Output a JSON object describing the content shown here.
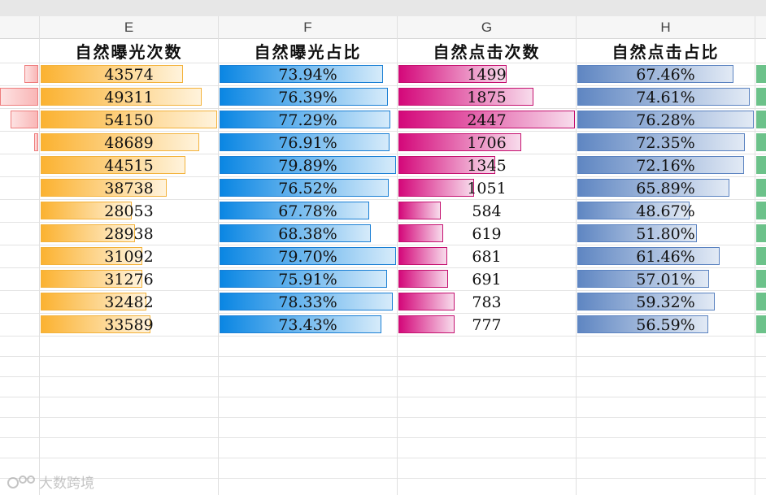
{
  "columns": [
    {
      "id": "E",
      "letter": "E",
      "title": "自然曝光次数",
      "values": [
        "43574",
        "49311",
        "54150",
        "48689",
        "44515",
        "38738",
        "28053",
        "28938",
        "31092",
        "31276",
        "32482",
        "33589"
      ],
      "fractions": [
        0.805,
        0.911,
        1.0,
        0.899,
        0.822,
        0.715,
        0.518,
        0.534,
        0.574,
        0.578,
        0.6,
        0.62
      ],
      "color": "#fbb231"
    },
    {
      "id": "F",
      "letter": "F",
      "title": "自然曝光占比",
      "values": [
        "73.94%",
        "76.39%",
        "77.29%",
        "76.91%",
        "79.89%",
        "76.52%",
        "67.78%",
        "68.38%",
        "79.70%",
        "75.91%",
        "78.33%",
        "73.43%"
      ],
      "fractions": [
        0.925,
        0.956,
        0.967,
        0.963,
        1.0,
        0.958,
        0.848,
        0.856,
        0.998,
        0.95,
        0.98,
        0.919
      ],
      "color": "#0a86e3"
    },
    {
      "id": "G",
      "letter": "G",
      "title": "自然点击次数",
      "values": [
        "1499",
        "1875",
        "2447",
        "1706",
        "1345",
        "1051",
        "584",
        "619",
        "681",
        "691",
        "783",
        "777"
      ],
      "fractions": [
        0.613,
        0.766,
        1.0,
        0.697,
        0.55,
        0.43,
        0.239,
        0.253,
        0.278,
        0.282,
        0.32,
        0.318
      ],
      "color": "#d4087a"
    },
    {
      "id": "H",
      "letter": "H",
      "title": "自然点击占比",
      "values": [
        "67.46%",
        "74.61%",
        "76.28%",
        "72.35%",
        "72.16%",
        "65.89%",
        "48.67%",
        "51.80%",
        "61.46%",
        "57.01%",
        "59.32%",
        "56.59%"
      ],
      "fractions": [
        0.884,
        0.978,
        1.0,
        0.948,
        0.946,
        0.864,
        0.638,
        0.679,
        0.806,
        0.747,
        0.778,
        0.742
      ],
      "color": "#5f86c2"
    }
  ],
  "partial_left_fractions": [
    0.37,
    1.0,
    0.73,
    0.1
  ],
  "watermark": "大数跨境"
}
